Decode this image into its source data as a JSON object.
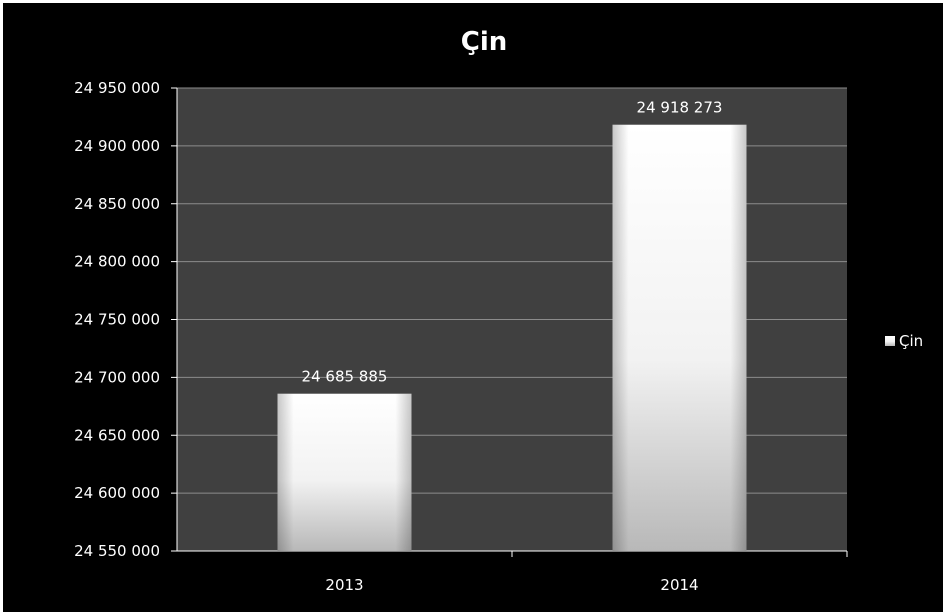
{
  "chart_data": {
    "type": "bar",
    "title": "Çin",
    "xlabel": "",
    "ylabel": "",
    "categories": [
      "2013",
      "2014"
    ],
    "series": [
      {
        "name": "Çin",
        "values": [
          24685885,
          24918273
        ],
        "value_labels": [
          "24 685 885",
          "24 918 273"
        ]
      }
    ],
    "ylim": [
      24550000,
      24950000
    ],
    "yticks": [
      24550000,
      24600000,
      24650000,
      24700000,
      24750000,
      24800000,
      24850000,
      24900000,
      24950000
    ],
    "ytick_labels": [
      "24 550 000",
      "24 600 000",
      "24 650 000",
      "24 700 000",
      "24 750 000",
      "24 800 000",
      "24 850 000",
      "24 900 000",
      "24 950 000"
    ],
    "grid": true,
    "legend_position": "right",
    "colors": {
      "background": "#000000",
      "plot_area": "#404040",
      "gridline": "#8c8c8c",
      "bar_light": "#ffffff",
      "bar_dark": "#a6a6a6",
      "text": "#ffffff"
    }
  }
}
